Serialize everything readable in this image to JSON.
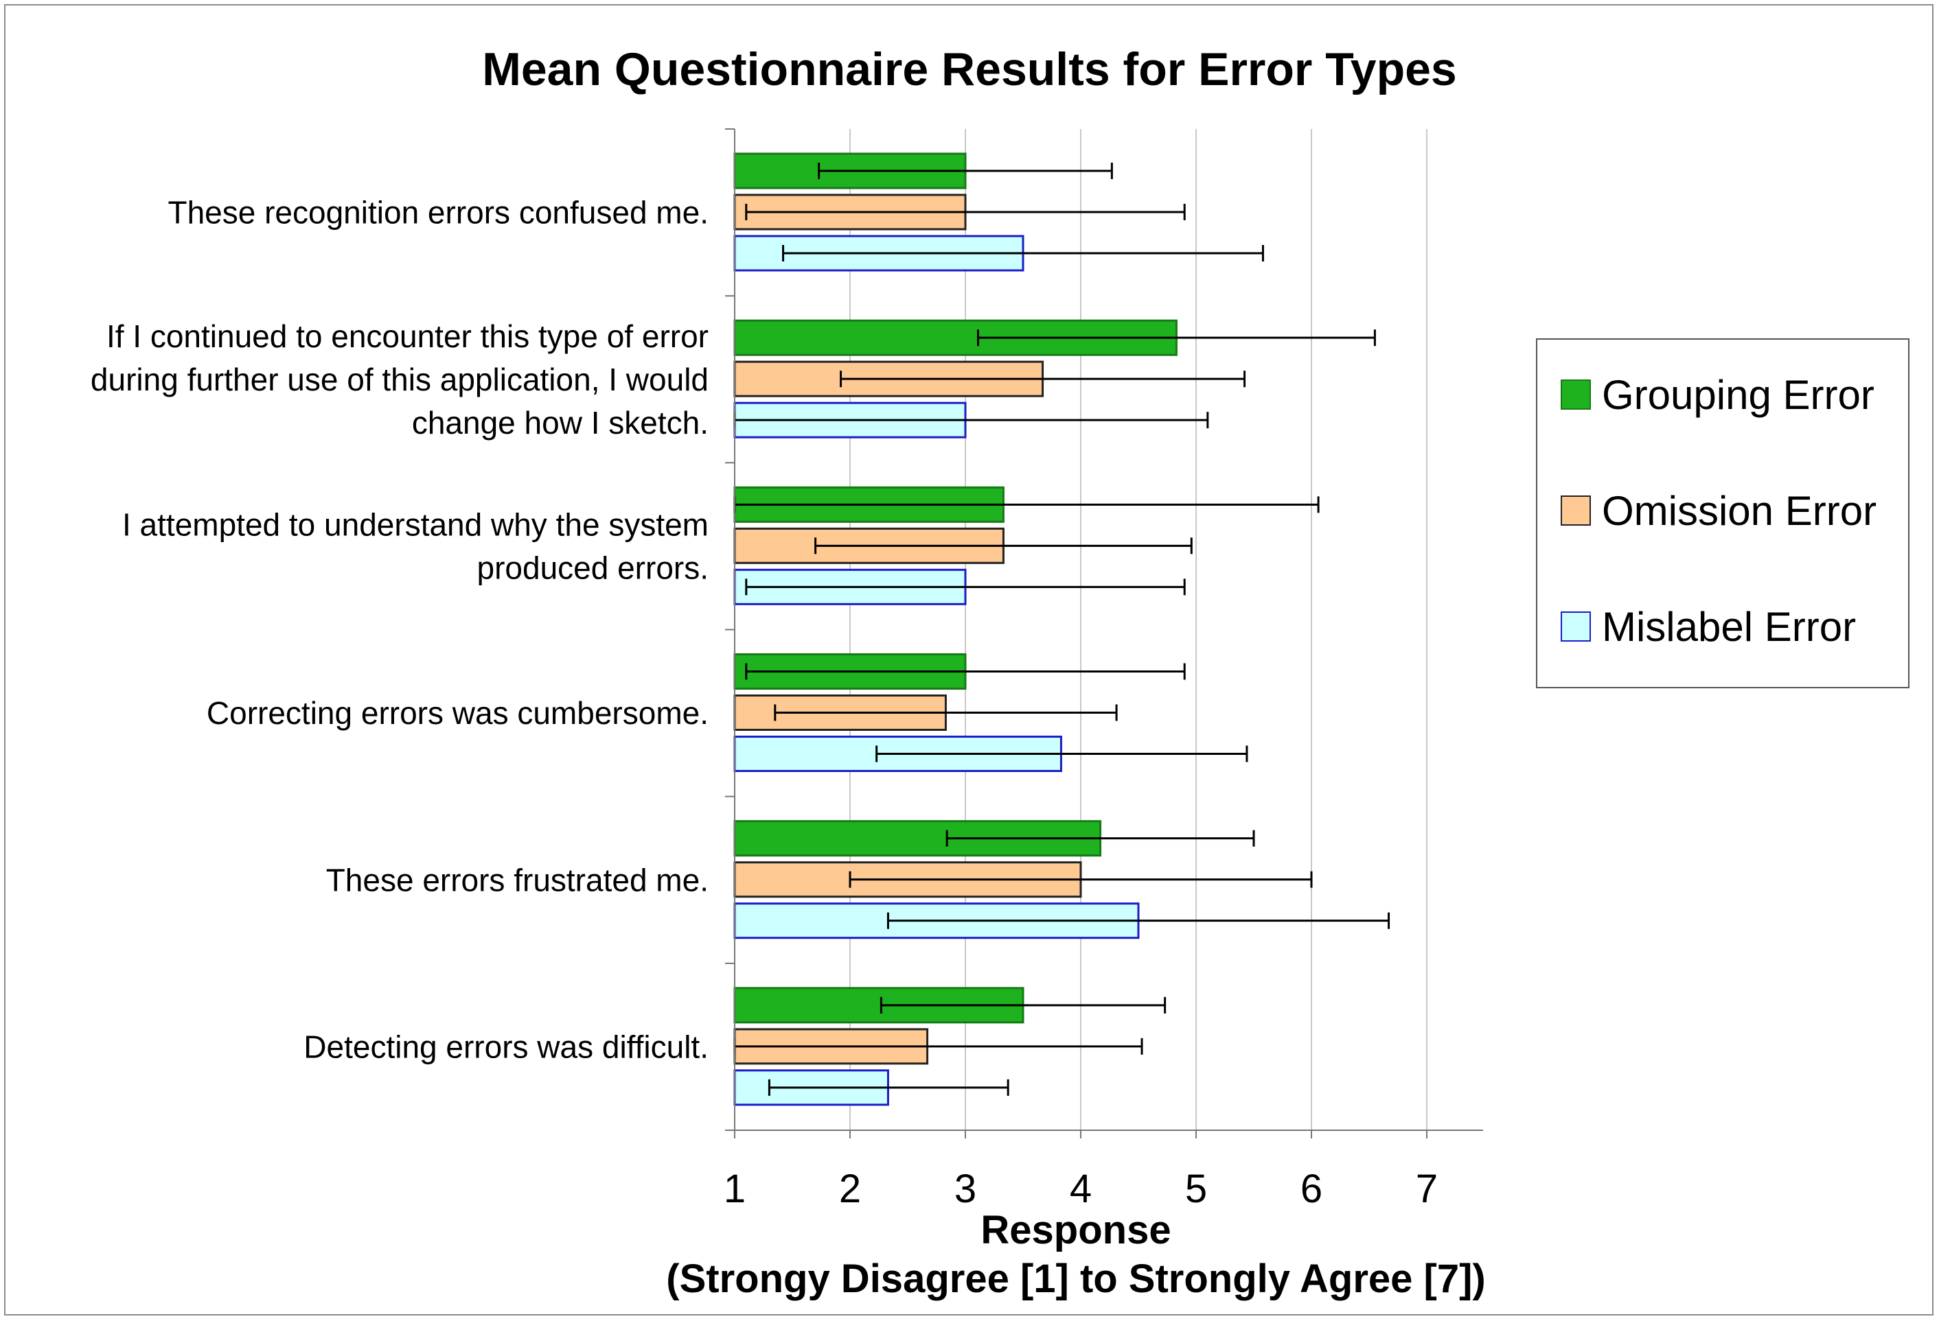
{
  "chart_data": {
    "type": "bar",
    "orientation": "horizontal",
    "title": "Mean Questionnaire Results for Error Types",
    "xlabel_line1": "Response",
    "xlabel_line2": "(Strongy Disagree [1] to Strongly Agree [7])",
    "xlim": [
      1,
      7
    ],
    "xticks": [
      "1",
      "2",
      "3",
      "4",
      "5",
      "6",
      "7"
    ],
    "grid": "vertical",
    "legend_position": "right",
    "categories": [
      [
        "These recognition errors confused me."
      ],
      [
        "If I continued to encounter this type of error",
        "during further use of this application, I would",
        "change how I sketch."
      ],
      [
        "I attempted to understand why the system",
        "produced errors."
      ],
      [
        "Correcting errors was cumbersome."
      ],
      [
        "These errors frustrated me."
      ],
      [
        "Detecting errors was difficult."
      ]
    ],
    "series": [
      {
        "name": "Grouping Error",
        "color": "#1fb21f",
        "border": "#167a16",
        "values": [
          3.0,
          4.83,
          3.33,
          3.0,
          4.17,
          3.5
        ],
        "err_low": [
          1.73,
          3.11,
          1.0,
          1.1,
          2.84,
          2.27
        ],
        "err_high": [
          4.27,
          6.55,
          6.06,
          4.9,
          5.5,
          4.73
        ]
      },
      {
        "name": "Omission Error",
        "color": "#ffc994",
        "border": "#222222",
        "values": [
          3.0,
          3.67,
          3.33,
          2.83,
          4.0,
          2.67
        ],
        "err_low": [
          1.1,
          1.92,
          1.7,
          1.35,
          2.0,
          1.0
        ],
        "err_high": [
          4.9,
          5.42,
          4.96,
          4.31,
          6.0,
          4.53
        ]
      },
      {
        "name": "Mislabel Error",
        "color": "#ccffff",
        "border": "#1c1cc8",
        "values": [
          3.5,
          3.0,
          3.0,
          3.83,
          4.5,
          2.33
        ],
        "err_low": [
          1.42,
          1.0,
          1.1,
          2.23,
          2.33,
          1.3
        ],
        "err_high": [
          5.58,
          5.1,
          4.9,
          5.44,
          6.67,
          3.37
        ]
      }
    ]
  }
}
